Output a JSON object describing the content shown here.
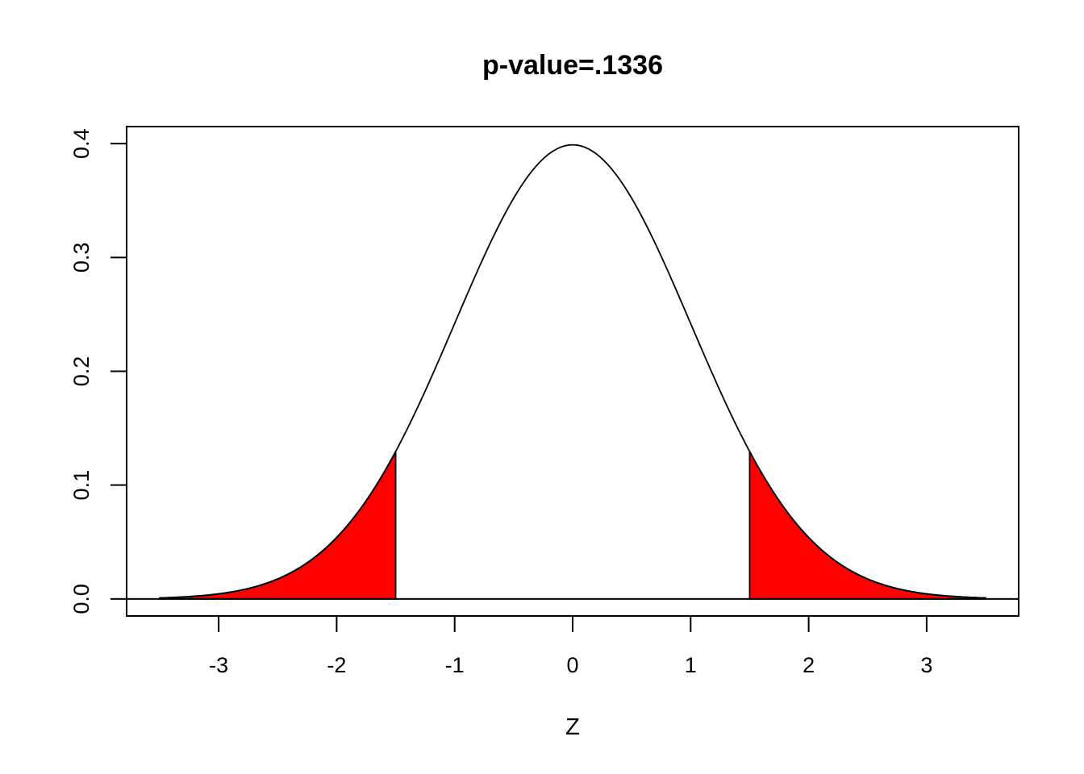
{
  "chart_data": {
    "type": "area",
    "title": "p-value=.1336",
    "xlabel": "Z",
    "ylabel": "",
    "xlim": [
      -3.78,
      3.78
    ],
    "ylim": [
      -0.015,
      0.415
    ],
    "x_ticks": [
      -3,
      -2,
      -1,
      0,
      1,
      2,
      3
    ],
    "x_tick_labels": [
      "-3",
      "-2",
      "-1",
      "0",
      "1",
      "2",
      "3"
    ],
    "y_ticks": [
      0.0,
      0.1,
      0.2,
      0.3,
      0.4
    ],
    "y_tick_labels": [
      "0.0",
      "0.1",
      "0.2",
      "0.3",
      "0.4"
    ],
    "curve": {
      "distribution": "standard normal density",
      "x_range": [
        -3.5,
        3.5
      ],
      "color": "#000000"
    },
    "baseline_y": 0,
    "shaded_regions": [
      {
        "from": -3.5,
        "to": -1.5,
        "color": "#ff0000"
      },
      {
        "from": 1.5,
        "to": 3.5,
        "color": "#ff0000"
      }
    ],
    "grid": false,
    "legend": "none"
  }
}
